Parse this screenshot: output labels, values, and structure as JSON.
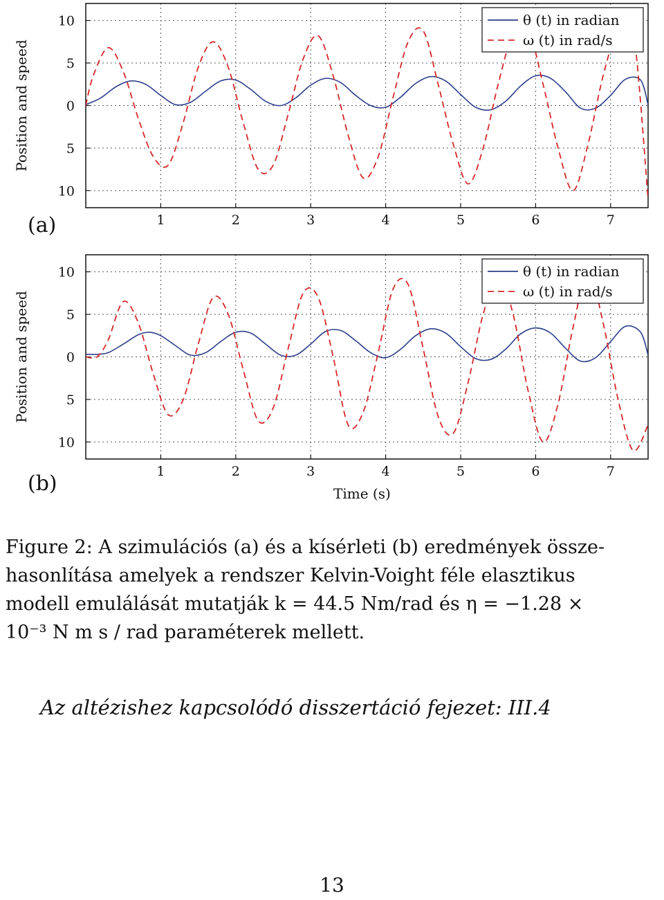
{
  "chart_data": [
    {
      "type": "line",
      "panel_label": "(a)",
      "ylabel": "Position and speed",
      "xlabel": "",
      "xlim": [
        0,
        7.5
      ],
      "ylim": [
        -12,
        12
      ],
      "xticks": [
        1,
        2,
        3,
        4,
        5,
        6,
        7
      ],
      "yticks": [
        10,
        5,
        0,
        -5,
        -10
      ],
      "ytick_labels": [
        "10",
        "5",
        "0",
        "5",
        "10"
      ],
      "grid": true,
      "legend_position": "top-right",
      "series": [
        {
          "name": "θ (t) in radian",
          "style": "solid",
          "color": "#2c3e8c",
          "x": [
            0,
            0.2,
            0.4,
            0.6,
            0.8,
            1.0,
            1.2,
            1.4,
            1.6,
            1.8,
            2.0,
            2.2,
            2.4,
            2.6,
            2.8,
            3.0,
            3.2,
            3.4,
            3.6,
            3.8,
            4.0,
            4.2,
            4.4,
            4.6,
            4.8,
            5.0,
            5.2,
            5.4,
            5.6,
            5.8,
            6.0,
            6.2,
            6.4,
            6.6,
            6.8,
            7.0,
            7.2,
            7.4,
            7.5
          ],
          "y": [
            0.1,
            0.9,
            2.2,
            2.9,
            2.5,
            1.2,
            0.1,
            0.4,
            1.7,
            2.9,
            3.0,
            1.9,
            0.5,
            0.0,
            0.9,
            2.4,
            3.2,
            2.7,
            1.2,
            0.0,
            -0.2,
            1.0,
            2.6,
            3.4,
            2.9,
            1.3,
            -0.2,
            -0.5,
            0.5,
            2.3,
            3.5,
            3.2,
            1.6,
            -0.3,
            -0.3,
            1.2,
            3.1,
            3.0,
            0.1
          ]
        },
        {
          "name": "ω (t) in rad/s",
          "style": "dashed",
          "color": "#d62728",
          "x": [
            0,
            0.1,
            0.3,
            0.5,
            0.7,
            0.9,
            1.1,
            1.3,
            1.5,
            1.7,
            1.9,
            2.1,
            2.3,
            2.5,
            2.7,
            2.9,
            3.1,
            3.3,
            3.5,
            3.7,
            3.9,
            4.1,
            4.3,
            4.5,
            4.7,
            4.9,
            5.1,
            5.3,
            5.5,
            5.7,
            5.9,
            6.1,
            6.3,
            6.5,
            6.7,
            6.9,
            7.1,
            7.3,
            7.5
          ],
          "y": [
            0.0,
            3.5,
            6.8,
            4.0,
            -1.5,
            -6.0,
            -7.0,
            -2.0,
            4.5,
            7.5,
            4.5,
            -2.0,
            -7.5,
            -7.0,
            -1.0,
            5.5,
            8.2,
            3.5,
            -3.5,
            -8.5,
            -6.0,
            1.0,
            7.5,
            8.8,
            2.5,
            -4.5,
            -9.2,
            -5.0,
            2.5,
            8.5,
            9.0,
            2.5,
            -5.0,
            -10.0,
            -4.5,
            3.5,
            9.0,
            9.0,
            -11.0
          ]
        }
      ]
    },
    {
      "type": "line",
      "panel_label": "(b)",
      "ylabel": "Position and speed",
      "xlabel": "Time (s)",
      "xlim": [
        0,
        7.5
      ],
      "ylim": [
        -12,
        12
      ],
      "xticks": [
        1,
        2,
        3,
        4,
        5,
        6,
        7
      ],
      "yticks": [
        10,
        5,
        0,
        -5,
        -10
      ],
      "ytick_labels": [
        "10",
        "5",
        "0",
        "5",
        "10"
      ],
      "grid": true,
      "legend_position": "top-right",
      "series": [
        {
          "name": "θ (t) in radian",
          "style": "solid",
          "color": "#2c3e8c",
          "x": [
            0,
            0.15,
            0.3,
            0.5,
            0.7,
            0.85,
            1.0,
            1.2,
            1.4,
            1.6,
            1.8,
            2.0,
            2.2,
            2.4,
            2.6,
            2.8,
            3.0,
            3.2,
            3.4,
            3.6,
            3.8,
            4.0,
            4.2,
            4.4,
            4.6,
            4.8,
            5.0,
            5.2,
            5.4,
            5.6,
            5.8,
            6.0,
            6.2,
            6.4,
            6.6,
            6.8,
            7.0,
            7.2,
            7.4,
            7.5
          ],
          "y": [
            0.3,
            0.3,
            0.5,
            1.5,
            2.6,
            2.9,
            2.5,
            1.3,
            0.2,
            0.5,
            1.8,
            2.9,
            2.8,
            1.5,
            0.2,
            0.2,
            1.5,
            3.0,
            3.1,
            1.9,
            0.5,
            -0.1,
            0.9,
            2.5,
            3.3,
            2.8,
            1.2,
            -0.2,
            -0.3,
            0.9,
            2.7,
            3.4,
            2.8,
            1.0,
            -0.5,
            -0.1,
            1.8,
            3.6,
            2.9,
            0.2
          ]
        },
        {
          "name": "ω (t) in rad/s",
          "style": "dashed",
          "color": "#d62728",
          "x": [
            0,
            0.15,
            0.3,
            0.5,
            0.7,
            0.9,
            1.1,
            1.3,
            1.5,
            1.7,
            1.9,
            2.1,
            2.3,
            2.5,
            2.7,
            2.9,
            3.1,
            3.3,
            3.5,
            3.7,
            3.9,
            4.1,
            4.3,
            4.5,
            4.7,
            4.9,
            5.1,
            5.3,
            5.5,
            5.7,
            5.9,
            6.1,
            6.3,
            6.5,
            6.7,
            6.9,
            7.1,
            7.3,
            7.5
          ],
          "y": [
            0.0,
            0.0,
            2.0,
            6.5,
            4.0,
            -2.0,
            -6.8,
            -5.0,
            1.5,
            7.0,
            5.0,
            -1.5,
            -7.5,
            -6.0,
            1.0,
            7.5,
            7.0,
            0.0,
            -8.0,
            -6.5,
            0.5,
            8.0,
            8.5,
            1.0,
            -7.0,
            -9.0,
            -3.0,
            5.0,
            9.5,
            5.0,
            -4.0,
            -10.0,
            -5.5,
            3.5,
            10.0,
            4.0,
            -5.0,
            -11.0,
            -8.0
          ]
        }
      ]
    }
  ],
  "caption": {
    "lines": [
      "Figure 2: A szimulációs (a) és a kísérleti (b) eredmények össze-",
      "hasonlítása amelyek a rendszer Kelvin-Voight féle elasztikus",
      "modell emulálását mutatják k = 44.5 Nm/rad és η = −1.28 ×",
      "10⁻³ N m s / rad paraméterek mellett."
    ]
  },
  "subthesis_reference": "Az altézishez kapcsolódó disszertáció fejezet: III.4",
  "page_number": "13"
}
